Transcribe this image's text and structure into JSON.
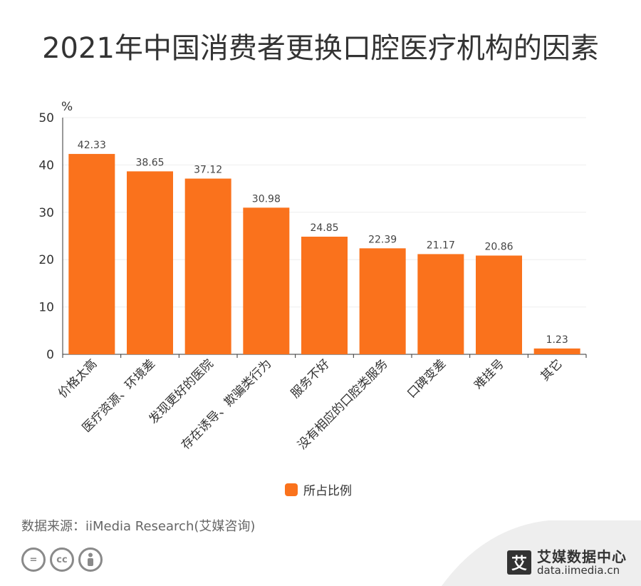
{
  "title": "2021年中国消费者更换口腔医疗机构的因素",
  "colors": {
    "bar": "#FA721C",
    "axis": "#333333",
    "grid": "#eeeeee"
  },
  "chart_data": {
    "type": "bar",
    "unit_label": "%",
    "categories": [
      "价格太高",
      "医疗资源、环境差",
      "发现更好的医院",
      "存在诱导、欺骗类行为",
      "服务不好",
      "没有相应的口腔类服务",
      "口碑变差",
      "难挂号",
      "其它"
    ],
    "series": [
      {
        "name": "所占比例",
        "values": [
          42.33,
          38.65,
          37.12,
          30.98,
          24.85,
          22.39,
          21.17,
          20.86,
          1.23
        ]
      }
    ],
    "value_labels": [
      "42.33",
      "38.65",
      "37.12",
      "30.98",
      "24.85",
      "22.39",
      "21.17",
      "20.86",
      "1.23"
    ],
    "ylim": [
      0,
      50
    ],
    "yticks": [
      "0",
      "10",
      "20",
      "30",
      "40",
      "50"
    ],
    "grid": true,
    "legend_position": "bottom-center"
  },
  "legend": {
    "label": "所占比例"
  },
  "source": "数据来源：iiMedia Research(艾媒咨询)",
  "brand": {
    "logo_char": "艾",
    "name": "艾媒数据中心",
    "url": "data.iimedia.cn"
  },
  "license_icons": [
    "equals-icon",
    "cc-icon",
    "person-icon"
  ]
}
